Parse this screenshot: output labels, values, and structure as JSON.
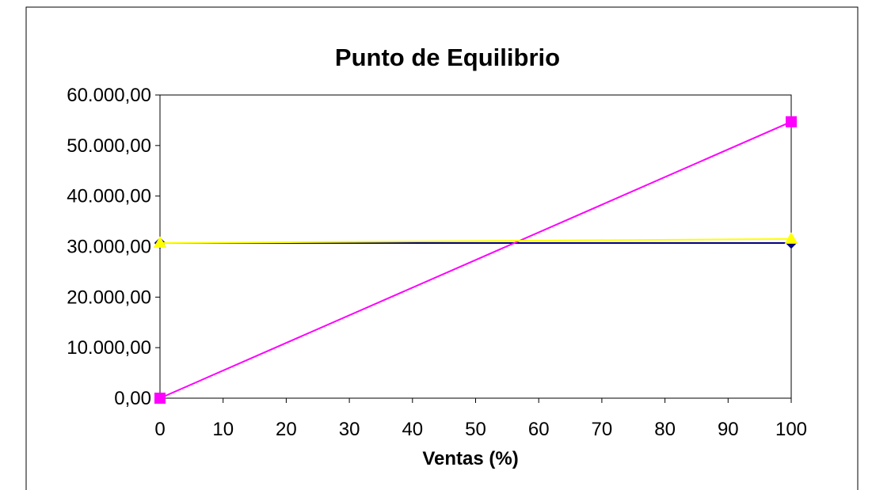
{
  "chart_data": {
    "type": "line",
    "title": "Punto de Equilibrio",
    "xlabel": "Ventas (%)",
    "ylabel": "",
    "xlim": [
      0,
      100
    ],
    "ylim": [
      0,
      60000
    ],
    "x_ticks": [
      0,
      10,
      20,
      30,
      40,
      50,
      60,
      70,
      80,
      90,
      100
    ],
    "x_tick_labels": [
      "0",
      "10",
      "20",
      "30",
      "40",
      "50",
      "60",
      "70",
      "80",
      "90",
      "100"
    ],
    "y_ticks": [
      0,
      10000,
      20000,
      30000,
      40000,
      50000,
      60000
    ],
    "y_tick_labels": [
      "0,00",
      "10.000,00",
      "20.000,00",
      "30.000,00",
      "40.000,00",
      "50.000,00",
      "60.000,00"
    ],
    "grid": false,
    "legend": "none",
    "series": [
      {
        "color": "#000080",
        "marker": "diamond",
        "x": [
          0,
          100
        ],
        "y": [
          30700,
          30700
        ]
      },
      {
        "color": "#ff00ff",
        "marker": "square",
        "x": [
          0,
          100
        ],
        "y": [
          0,
          54700
        ]
      },
      {
        "color": "#ffff00",
        "marker": "triangle",
        "x": [
          0,
          100
        ],
        "y": [
          30700,
          31500
        ]
      }
    ]
  }
}
